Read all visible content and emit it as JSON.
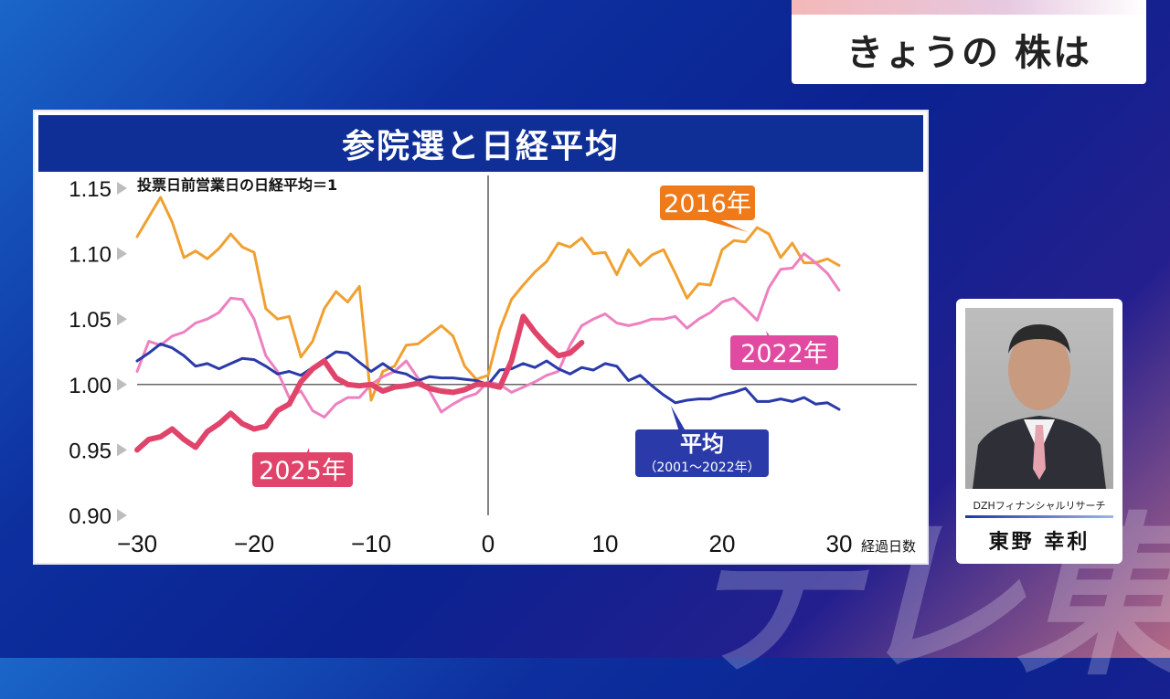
{
  "topic": {
    "title": "きょうの 株は"
  },
  "watermark": {
    "text": "テレ東"
  },
  "person": {
    "company": "DZHフィナンシャルリサーチ",
    "name": "東野 幸利"
  },
  "chart_data": {
    "type": "line",
    "title": "参院選と日経平均",
    "note": "投票日前営業日の日経平均＝1",
    "xlabel": "経過日数",
    "ylabel": "",
    "xlim": [
      -30,
      30
    ],
    "ylim": [
      0.9,
      1.15
    ],
    "xticks": [
      -30,
      -20,
      -10,
      0,
      10,
      20,
      30
    ],
    "xtick_labels": [
      "−30",
      "−20",
      "−10",
      "0",
      "10",
      "20",
      "30"
    ],
    "yticks": [
      0.9,
      0.95,
      1.0,
      1.05,
      1.1,
      1.15
    ],
    "ytick_labels": [
      "0.90",
      "0.95",
      "1.00",
      "1.05",
      "1.10",
      "1.15"
    ],
    "series": [
      {
        "name": "2016年",
        "color": "#f0a030",
        "label_bg": "#ef7a1a",
        "width": 3,
        "x": [
          -30,
          -29,
          -28,
          -27,
          -26,
          -25,
          -24,
          -23,
          -22,
          -21,
          -20,
          -19,
          -18,
          -17,
          -16,
          -15,
          -14,
          -13,
          -12,
          -11,
          -10,
          -9,
          -8,
          -7,
          -6,
          -5,
          -4,
          -3,
          -2,
          -1,
          0,
          1,
          2,
          3,
          4,
          5,
          6,
          7,
          8,
          9,
          10,
          11,
          12,
          13,
          14,
          15,
          16,
          17,
          18,
          19,
          20,
          21,
          22,
          23,
          24,
          25,
          26,
          27,
          28,
          29,
          30
        ],
        "values": [
          1.113,
          1.128,
          1.143,
          1.124,
          1.097,
          1.102,
          1.096,
          1.104,
          1.115,
          1.105,
          1.101,
          1.058,
          1.05,
          1.052,
          1.021,
          1.033,
          1.058,
          1.071,
          1.063,
          1.075,
          0.988,
          1.01,
          1.014,
          1.03,
          1.031,
          1.038,
          1.045,
          1.037,
          1.014,
          1.004,
          1.007,
          1.042,
          1.065,
          1.076,
          1.086,
          1.094,
          1.108,
          1.105,
          1.112,
          1.1,
          1.101,
          1.084,
          1.103,
          1.091,
          1.099,
          1.103,
          1.085,
          1.066,
          1.077,
          1.076,
          1.103,
          1.11,
          1.109,
          1.12,
          1.115,
          1.097,
          1.108,
          1.093,
          1.093,
          1.096,
          1.091
        ]
      },
      {
        "name": "2022年",
        "color": "#ee80c0",
        "label_bg": "#e24aa2",
        "width": 3,
        "x": [
          -30,
          -29,
          -28,
          -27,
          -26,
          -25,
          -24,
          -23,
          -22,
          -21,
          -20,
          -19,
          -18,
          -17,
          -16,
          -15,
          -14,
          -13,
          -12,
          -11,
          -10,
          -9,
          -8,
          -7,
          -6,
          -5,
          -4,
          -3,
          -2,
          -1,
          0,
          1,
          2,
          3,
          4,
          5,
          6,
          7,
          8,
          9,
          10,
          11,
          12,
          13,
          14,
          15,
          16,
          17,
          18,
          19,
          20,
          21,
          22,
          23,
          24,
          25,
          26,
          27,
          28,
          29,
          30
        ],
        "values": [
          1.01,
          1.033,
          1.03,
          1.037,
          1.04,
          1.047,
          1.05,
          1.055,
          1.066,
          1.065,
          1.05,
          1.022,
          1.01,
          0.99,
          0.995,
          0.98,
          0.975,
          0.985,
          0.99,
          0.99,
          1.0,
          1.006,
          1.01,
          1.018,
          1.005,
          0.995,
          0.979,
          0.985,
          0.99,
          0.993,
          1.002,
          1.0,
          0.994,
          0.998,
          1.002,
          1.007,
          1.01,
          1.03,
          1.045,
          1.05,
          1.054,
          1.047,
          1.045,
          1.047,
          1.05,
          1.05,
          1.052,
          1.043,
          1.05,
          1.055,
          1.063,
          1.066,
          1.058,
          1.049,
          1.074,
          1.088,
          1.089,
          1.1,
          1.093,
          1.085,
          1.072
        ]
      },
      {
        "name": "平均",
        "sublabel": "（2001〜2022年）",
        "color": "#2a3aa8",
        "label_bg": "#2a3aa8",
        "width": 3,
        "x": [
          -30,
          -29,
          -28,
          -27,
          -26,
          -25,
          -24,
          -23,
          -22,
          -21,
          -20,
          -19,
          -18,
          -17,
          -16,
          -15,
          -14,
          -13,
          -12,
          -11,
          -10,
          -9,
          -8,
          -7,
          -6,
          -5,
          -4,
          -3,
          -2,
          -1,
          0,
          1,
          2,
          3,
          4,
          5,
          6,
          7,
          8,
          9,
          10,
          11,
          12,
          13,
          14,
          15,
          16,
          17,
          18,
          19,
          20,
          21,
          22,
          23,
          24,
          25,
          26,
          27,
          28,
          29,
          30
        ],
        "values": [
          1.018,
          1.024,
          1.031,
          1.028,
          1.022,
          1.014,
          1.016,
          1.012,
          1.016,
          1.02,
          1.019,
          1.014,
          1.008,
          1.01,
          1.007,
          1.013,
          1.019,
          1.025,
          1.024,
          1.017,
          1.01,
          1.016,
          1.01,
          1.008,
          1.003,
          1.006,
          1.005,
          1.005,
          1.004,
          1.003,
          1.0,
          1.011,
          1.012,
          1.016,
          1.013,
          1.018,
          1.012,
          1.008,
          1.013,
          1.011,
          1.016,
          1.014,
          1.003,
          1.007,
          0.999,
          0.992,
          0.986,
          0.988,
          0.989,
          0.989,
          0.992,
          0.994,
          0.997,
          0.987,
          0.987,
          0.989,
          0.987,
          0.99,
          0.985,
          0.986,
          0.981
        ]
      },
      {
        "name": "2025年",
        "color": "#e0446a",
        "label_bg": "#e0446a",
        "width": 6,
        "x": [
          -30,
          -29,
          -28,
          -27,
          -26,
          -25,
          -24,
          -23,
          -22,
          -21,
          -20,
          -19,
          -18,
          -17,
          -16,
          -15,
          -14,
          -13,
          -12,
          -11,
          -10,
          -9,
          -8,
          -7,
          -6,
          -5,
          -4,
          -3,
          -2,
          -1,
          0,
          1,
          2,
          3,
          4,
          5,
          6,
          7,
          8
        ],
        "values": [
          0.95,
          0.958,
          0.96,
          0.966,
          0.958,
          0.952,
          0.964,
          0.97,
          0.978,
          0.97,
          0.966,
          0.968,
          0.98,
          0.985,
          1.002,
          1.012,
          1.018,
          1.005,
          1.0,
          0.999,
          1.0,
          0.995,
          0.998,
          0.999,
          1.001,
          0.997,
          0.995,
          0.994,
          0.996,
          1.0,
          1.0,
          0.998,
          1.018,
          1.052,
          1.04,
          1.03,
          1.022,
          1.024,
          1.032
        ]
      }
    ]
  }
}
